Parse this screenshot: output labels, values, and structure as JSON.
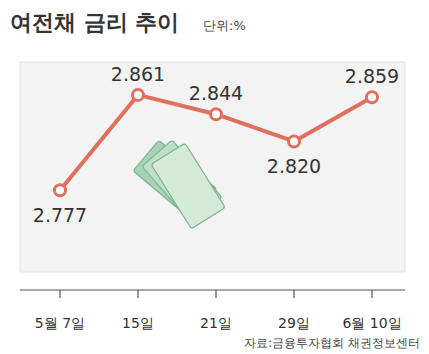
{
  "chart_data": {
    "type": "line",
    "title": "여전채 금리 추이",
    "subtitle": "단위:%",
    "source": "자료:금융투자협회 채권정보센터",
    "categories": [
      "5월 7일",
      "15일",
      "21일",
      "29일",
      "6월 10일"
    ],
    "values": [
      2.777,
      2.861,
      2.844,
      2.82,
      2.859
    ],
    "value_labels": [
      "2.777",
      "2.861",
      "2.844",
      "2.820",
      "2.859"
    ],
    "color": "#e0705c",
    "marker": "circle",
    "line_style": "solid",
    "ylim": [
      2.705,
      2.89
    ],
    "data_labels": true,
    "tick_labels": "x",
    "grid": false
  }
}
